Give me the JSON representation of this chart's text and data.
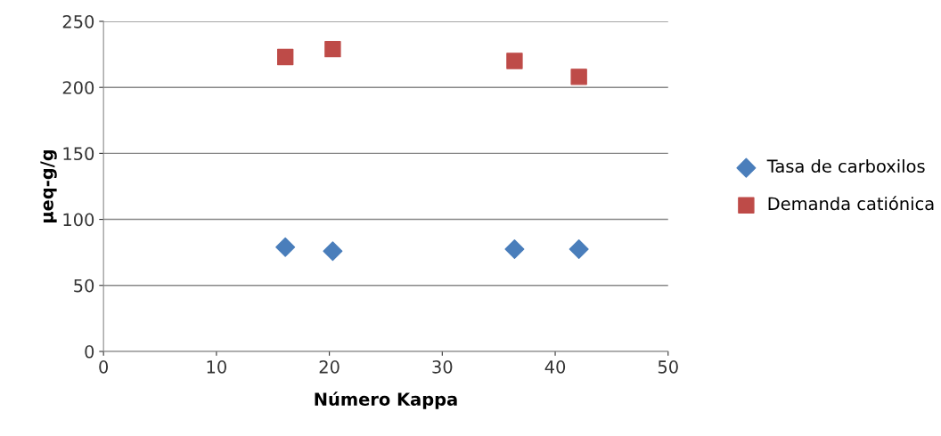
{
  "chart_data": {
    "type": "scatter",
    "xlabel": "Número Kappa",
    "ylabel": "µeq-g/g",
    "x": [
      16.1,
      20.3,
      36.4,
      42.1
    ],
    "series": [
      {
        "name": "Tasa de carboxilos",
        "color": "#4a7ebb",
        "marker": "diamond",
        "values": [
          79,
          76,
          77.5,
          77.5
        ]
      },
      {
        "name": "Demanda catiónica",
        "color": "#be4b48",
        "marker": "square",
        "values": [
          223,
          229,
          220,
          208
        ]
      }
    ],
    "xlim": [
      0,
      50
    ],
    "xticks": [
      0,
      10,
      20,
      30,
      40,
      50
    ],
    "ylim": [
      0,
      250
    ],
    "yticks": [
      0,
      50,
      100,
      150,
      200,
      250
    ],
    "grid": "y",
    "legend": "right"
  }
}
